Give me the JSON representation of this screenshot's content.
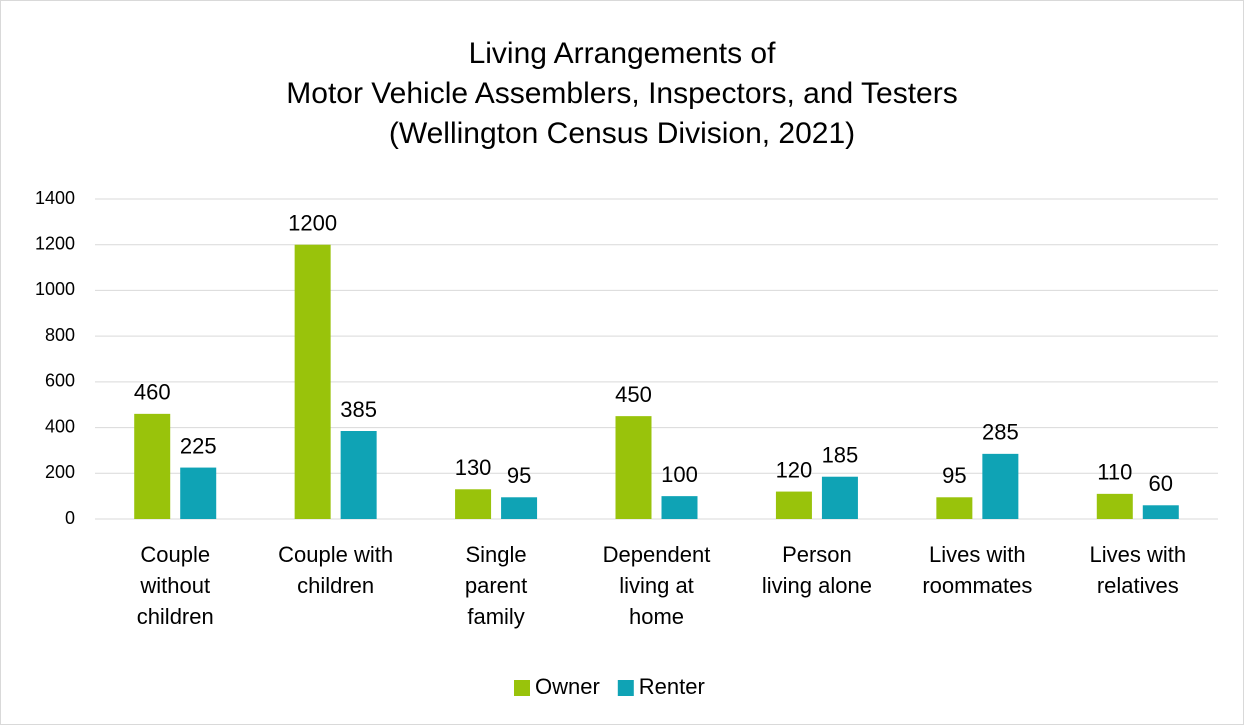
{
  "chart_data": {
    "type": "bar",
    "title": [
      "Living Arrangements of",
      "Motor Vehicle Assemblers, Inspectors, and Testers",
      "(Wellington Census Division, 2021)"
    ],
    "categories": [
      [
        "Couple",
        "without",
        "children"
      ],
      [
        "Couple with",
        "children"
      ],
      [
        "Single",
        "parent",
        "family"
      ],
      [
        "Dependent",
        "living at",
        "home"
      ],
      [
        "Person",
        "living alone"
      ],
      [
        "Lives with",
        "roommates"
      ],
      [
        "Lives with",
        "relatives"
      ]
    ],
    "series": [
      {
        "name": "Owner",
        "color": "#99c30b",
        "values": [
          460,
          1200,
          130,
          450,
          120,
          95,
          110
        ]
      },
      {
        "name": "Renter",
        "color": "#0fa3b5",
        "values": [
          225,
          385,
          95,
          100,
          185,
          285,
          60
        ]
      }
    ],
    "ylim": [
      0,
      1400
    ],
    "yticks": [
      0,
      200,
      400,
      600,
      800,
      1000,
      1200,
      1400
    ],
    "grid": true,
    "legend": "bottom"
  }
}
